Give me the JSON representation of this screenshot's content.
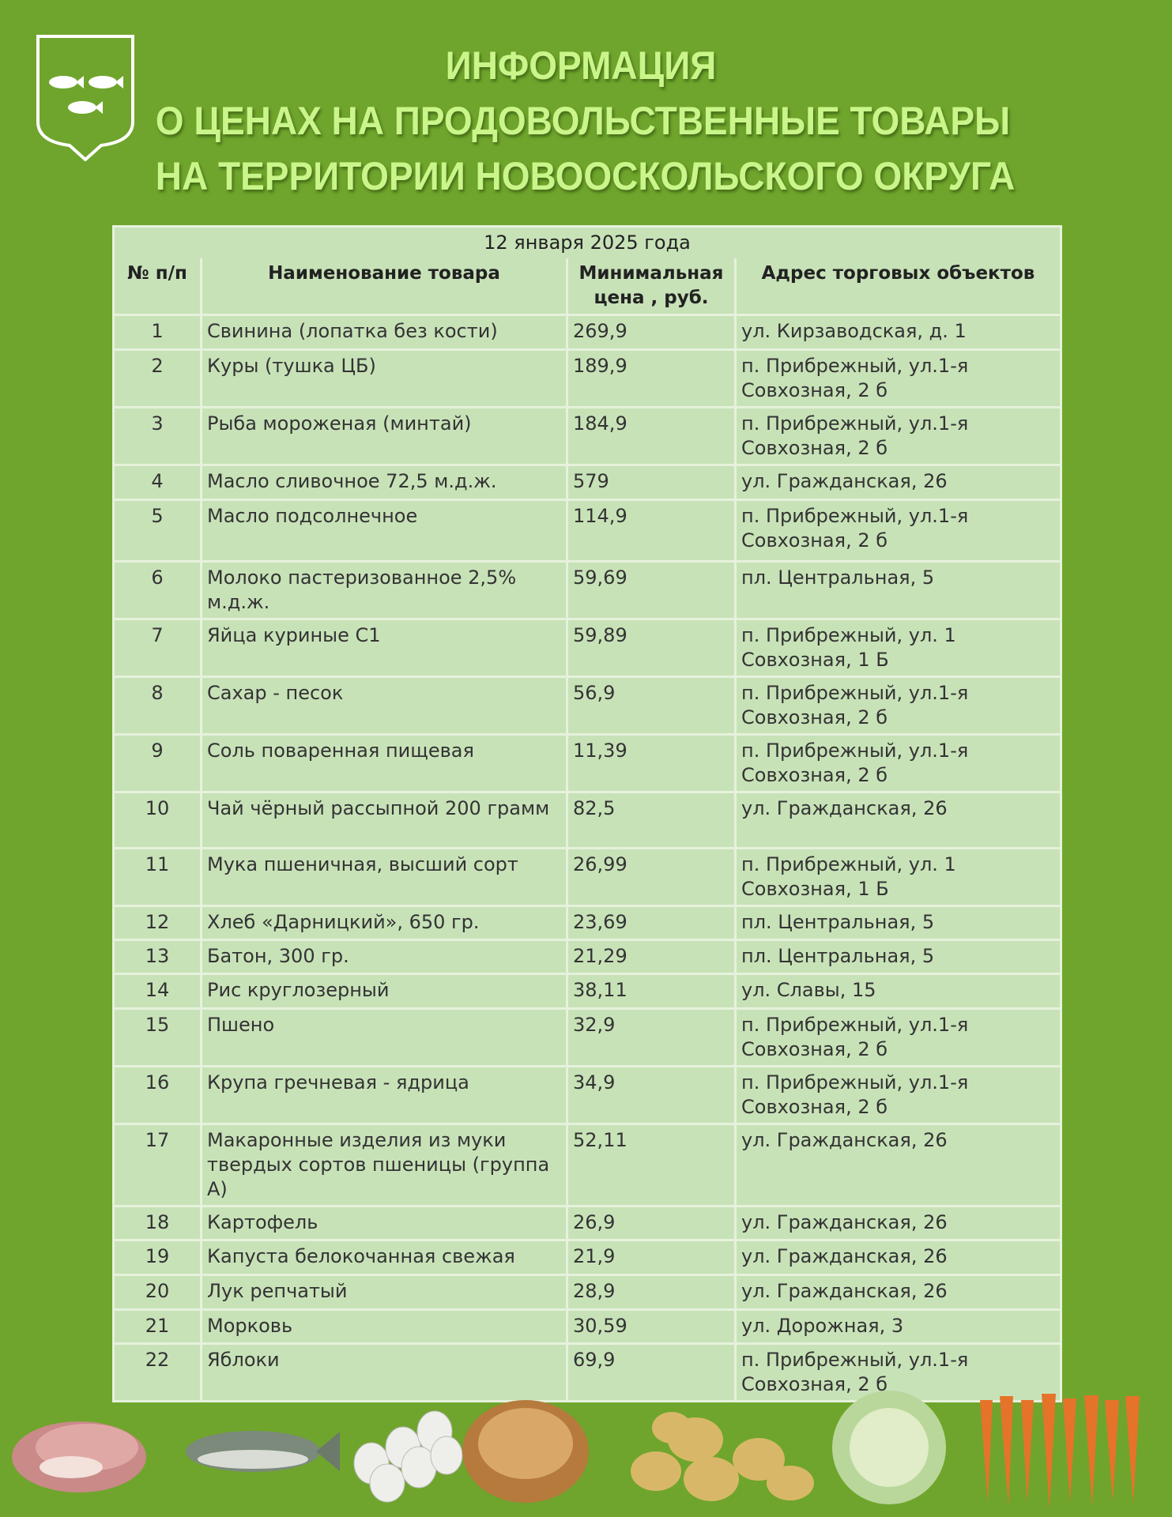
{
  "header": {
    "title_lines": [
      "ИНФОРМАЦИЯ",
      "О ЦЕНАХ НА ПРОДОВОЛЬСТВЕННЫЕ ТОВАРЫ",
      "НА ТЕРРИТОРИИ НОВООСКОЛЬСКОГО ОКРУГА"
    ],
    "logo": "coat-of-arms-three-fish"
  },
  "colors": {
    "background": "#6fa52c",
    "title": "#c9f58a",
    "table_bg": "#c8e2b8"
  },
  "table": {
    "date": "12 января 2025 года",
    "columns": [
      "№ п/п",
      "Наименование товара",
      "Минимальная цена , руб.",
      "Адрес торговых объектов"
    ],
    "rows": [
      [
        "1",
        "Свинина (лопатка без кости)",
        "269,9",
        "ул. Кирзаводская, д. 1"
      ],
      [
        "2",
        "Куры (тушка ЦБ)",
        "189,9",
        "п. Прибрежный, ул.1-я Совхозная, 2 б"
      ],
      [
        "3",
        "Рыба мороженая (минтай)",
        "184,9",
        "п. Прибрежный, ул.1-я Совхозная, 2 б"
      ],
      [
        "4",
        "Масло сливочное 72,5 м.д.ж.",
        "579",
        "ул. Гражданская, 26"
      ],
      [
        "5",
        "Масло подсолнечное",
        "114,9",
        "п. Прибрежный, ул.1-я Совхозная, 2 б"
      ],
      [
        "6",
        "Молоко пастеризованное 2,5% м.д.ж.",
        "59,69",
        "пл. Центральная, 5"
      ],
      [
        "7",
        "Яйца куриные С1",
        "59,89",
        "п. Прибрежный, ул. 1 Совхозная, 1 Б"
      ],
      [
        "8",
        "Сахар - песок",
        "56,9",
        "п. Прибрежный, ул.1-я Совхозная, 2 б"
      ],
      [
        "9",
        "Соль поваренная пищевая",
        "11,39",
        "п. Прибрежный, ул.1-я Совхозная, 2 б"
      ],
      [
        "10",
        "Чай чёрный рассыпной 200 грамм",
        "82,5",
        "ул. Гражданская, 26"
      ],
      [
        "11",
        "Мука пшеничная, высший сорт",
        "26,99",
        "п. Прибрежный, ул. 1 Совхозная, 1 Б"
      ],
      [
        "12",
        "Хлеб «Дарницкий», 650 гр.",
        "23,69",
        "пл. Центральная, 5"
      ],
      [
        "13",
        "Батон, 300 гр.",
        "21,29",
        "пл. Центральная, 5"
      ],
      [
        "14",
        "Рис круглозерный",
        "38,11",
        "ул. Славы, 15"
      ],
      [
        "15",
        "Пшено",
        "32,9",
        "п. Прибрежный, ул.1-я Совхозная, 2 б"
      ],
      [
        "16",
        "Крупа гречневая - ядрица",
        "34,9",
        "п. Прибрежный, ул.1-я Совхозная, 2 б"
      ],
      [
        "17",
        "Макаронные изделия из муки твердых сортов пшеницы (группа А)",
        "52,11",
        "ул. Гражданская, 26"
      ],
      [
        "18",
        "Картофель",
        "26,9",
        "ул. Гражданская, 26"
      ],
      [
        "19",
        "Капуста белокочанная свежая",
        "21,9",
        "ул. Гражданская, 26"
      ],
      [
        "20",
        "Лук репчатый",
        "28,9",
        "ул. Гражданская, 26"
      ],
      [
        "21",
        "Морковь",
        "30,59",
        "ул. Дорожная, 3"
      ],
      [
        "22",
        "Яблоки",
        "69,9",
        "п. Прибрежный, ул.1-я Совхозная, 2 б"
      ]
    ]
  },
  "footer_images": [
    "meat",
    "fish",
    "eggs",
    "bread",
    "potatoes",
    "cabbage",
    "carrots"
  ]
}
